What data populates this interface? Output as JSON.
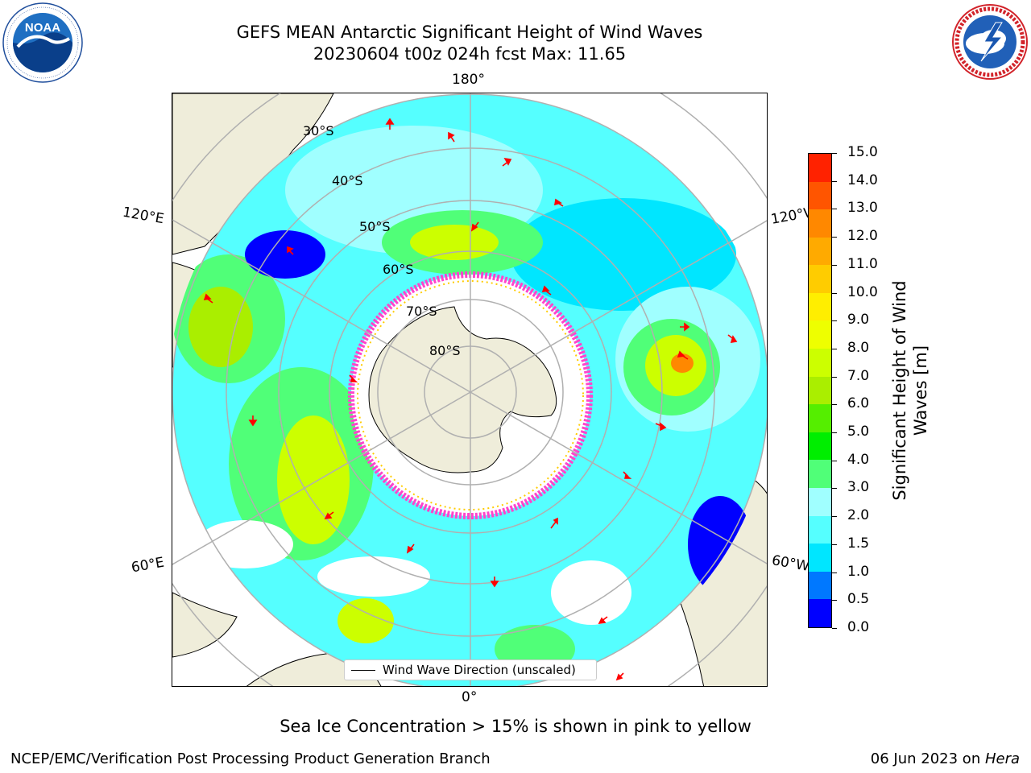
{
  "title": {
    "line1": "GEFS MEAN Antarctic Significant Height of Wind Waves",
    "line2": "20230604 t00z 024h fcst   Max: 11.65"
  },
  "logos": {
    "noaa": {
      "text": "NOAA",
      "ring_text": "NATIONAL OCEANIC AND ATMOSPHERIC ADMINISTRATION · U.S. DEPARTMENT OF COMMERCE"
    },
    "nws": {
      "ring_text": "NATIONAL WEATHER SERVICE"
    }
  },
  "map": {
    "longitude_labels": {
      "top": "180°",
      "bottom": "0°",
      "left_upper": "120°E",
      "right_upper": "120°W",
      "left_lower": "60°E",
      "right_lower": "60°W"
    },
    "latitude_labels": [
      "30°S",
      "40°S",
      "50°S",
      "60°S",
      "70°S",
      "80°S"
    ],
    "legend": "Wind Wave Direction (unscaled)",
    "colors": {
      "land": "#efedda",
      "ocean": "#ffffff",
      "grid": "#b0b0b0",
      "arrow": "#ff0000",
      "ice": "#ff44cc"
    }
  },
  "colorbar": {
    "label_line1": "Significant Height of Wind",
    "label_line2": "Waves [m]",
    "ticks": [
      "0.0",
      "0.5",
      "1.0",
      "1.5",
      "2.0",
      "3.0",
      "4.0",
      "5.0",
      "6.0",
      "7.0",
      "8.0",
      "9.0",
      "10.0",
      "11.0",
      "12.0",
      "13.0",
      "14.0",
      "15.0"
    ],
    "colors": [
      "#0000ff",
      "#0078ff",
      "#00e6ff",
      "#55ffff",
      "#a0ffff",
      "#50ff78",
      "#00ee00",
      "#55ee00",
      "#aaee00",
      "#ccff00",
      "#eeff00",
      "#ffee00",
      "#ffcc00",
      "#ffaa00",
      "#ff8800",
      "#ff5500",
      "#ff2200",
      "#ff0000"
    ]
  },
  "footnote": "Sea Ice Concentration > 15% is shown in pink to yellow",
  "credits": {
    "left": "NCEP/EMC/Verification Post Processing Product Generation Branch",
    "right_prefix": "06 Jun 2023 on ",
    "right_host": "Hera"
  }
}
